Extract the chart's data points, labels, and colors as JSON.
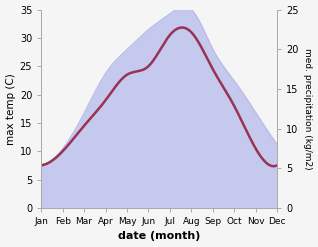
{
  "months": [
    "Jan",
    "Feb",
    "Mar",
    "Apr",
    "May",
    "Jun",
    "Jul",
    "Aug",
    "Sep",
    "Oct",
    "Nov",
    "Dec"
  ],
  "month_indices": [
    0,
    1,
    2,
    3,
    4,
    5,
    6,
    7,
    8,
    9,
    10,
    11
  ],
  "temperature": [
    7.5,
    10.0,
    14.5,
    19.0,
    23.5,
    25.0,
    30.5,
    31.0,
    24.5,
    18.0,
    10.5,
    7.5
  ],
  "precipitation": [
    5.5,
    7.5,
    12.0,
    17.0,
    20.0,
    22.5,
    24.5,
    25.0,
    20.0,
    16.0,
    12.0,
    8.0
  ],
  "temp_color": "#993355",
  "precip_fill_color": "#c5c9ee",
  "precip_edge_color": "#b0b5e8",
  "temp_ylim": [
    0,
    35
  ],
  "precip_ylim": [
    0,
    25
  ],
  "temp_yticks": [
    0,
    5,
    10,
    15,
    20,
    25,
    30,
    35
  ],
  "precip_yticks": [
    0,
    5,
    10,
    15,
    20,
    25
  ],
  "xlabel": "date (month)",
  "ylabel_left": "max temp (C)",
  "ylabel_right": "med. precipitation (kg/m2)",
  "figsize": [
    3.18,
    2.47
  ],
  "dpi": 100,
  "bg_color": "#f5f5f5"
}
